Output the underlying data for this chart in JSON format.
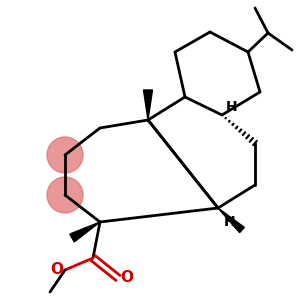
{
  "bg": "#ffffff",
  "bond_lw": 2.0,
  "font_size": 10,
  "red_color": "#e06060",
  "red_alpha": 0.65,
  "ester_color": "#cc0000",
  "fig_w": 3.0,
  "fig_h": 3.0,
  "dpi": 100,
  "xlim": [
    0,
    300
  ],
  "ylim": [
    300,
    0
  ]
}
